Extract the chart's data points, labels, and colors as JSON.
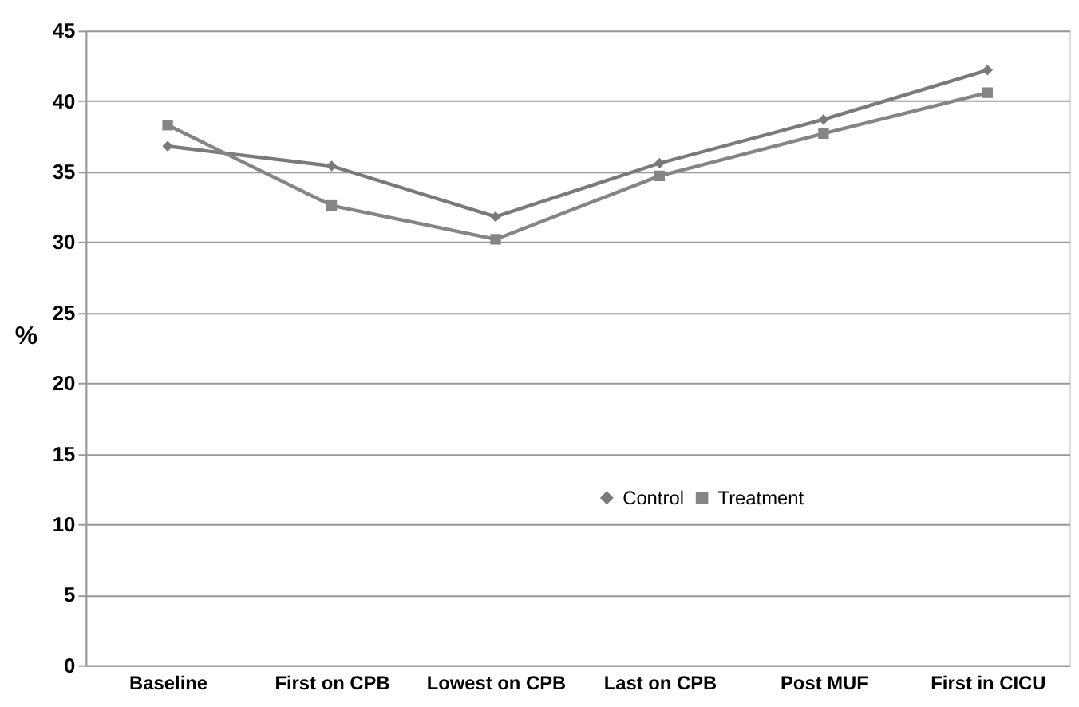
{
  "chart_data": {
    "type": "line",
    "ylabel": "%",
    "categories": [
      "Baseline",
      "First on CPB",
      "Lowest on CPB",
      "Last on CPB",
      "Post MUF",
      "First in CICU"
    ],
    "series": [
      {
        "name": "Control",
        "color": "#7a7a7a",
        "marker": "diamond",
        "values": [
          36.8,
          35.4,
          31.8,
          35.6,
          38.7,
          42.2
        ]
      },
      {
        "name": "Treatment",
        "color": "#858585",
        "marker": "square",
        "values": [
          38.3,
          32.6,
          30.2,
          34.7,
          37.7,
          40.6
        ]
      }
    ],
    "ylim": [
      0,
      45
    ],
    "yticks": [
      0,
      5,
      10,
      15,
      20,
      25,
      30,
      35,
      40,
      45
    ],
    "grid": "y",
    "legend": "center",
    "line_style": "solid"
  }
}
